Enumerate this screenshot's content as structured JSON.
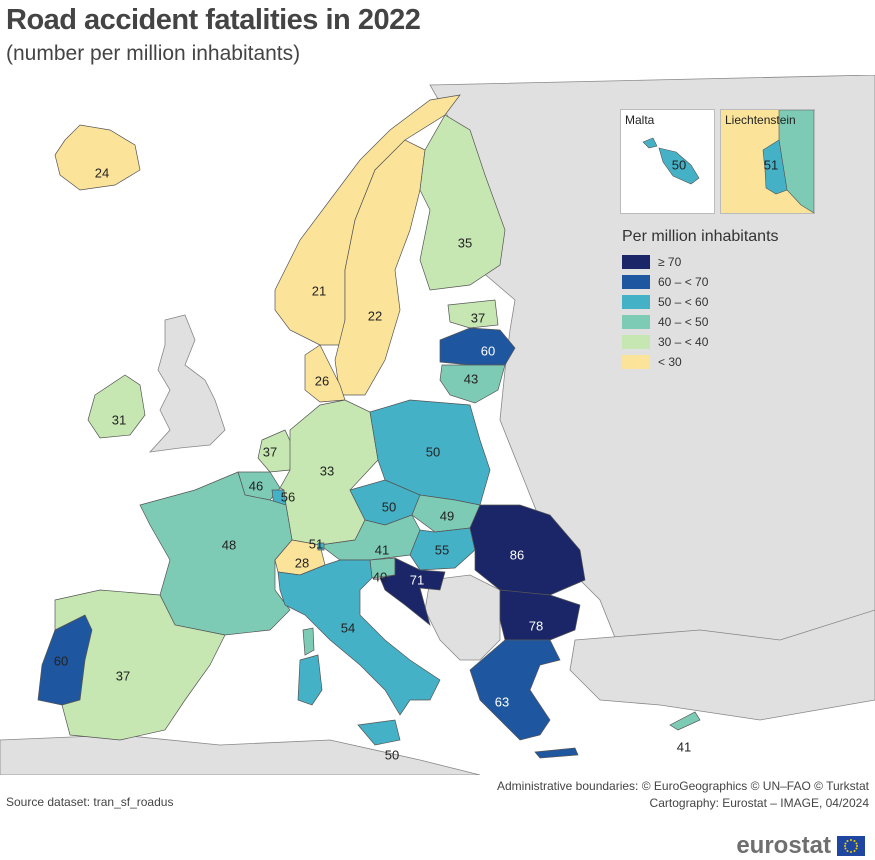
{
  "title": "Road accident fatalities in 2022",
  "subtitle": "(number per million inhabitants)",
  "legend": {
    "title": "Per million inhabitants",
    "classes": [
      {
        "label": "≥ 70",
        "color": "#1a2668"
      },
      {
        "label": "60 – < 70",
        "color": "#1f56a0"
      },
      {
        "label": "50 – < 60",
        "color": "#44b1c6"
      },
      {
        "label": "40 – < 50",
        "color": "#7ecbb5"
      },
      {
        "label": "30 – < 40",
        "color": "#c6e6b2"
      },
      {
        "label": "< 30",
        "color": "#fbe49a"
      }
    ]
  },
  "insets": {
    "malta": {
      "name": "Malta",
      "value": "50"
    },
    "liechtenstein": {
      "name": "Liechtenstein",
      "value": "51"
    }
  },
  "countries": [
    {
      "name": "Iceland",
      "value": "24"
    },
    {
      "name": "Norway",
      "value": "21"
    },
    {
      "name": "Sweden",
      "value": "22"
    },
    {
      "name": "Finland",
      "value": "35"
    },
    {
      "name": "Estonia",
      "value": "37"
    },
    {
      "name": "Latvia",
      "value": "60"
    },
    {
      "name": "Lithuania",
      "value": "43"
    },
    {
      "name": "Denmark",
      "value": "26"
    },
    {
      "name": "Ireland",
      "value": "31"
    },
    {
      "name": "Netherlands",
      "value": "37"
    },
    {
      "name": "Belgium",
      "value": "46"
    },
    {
      "name": "Luxembourg",
      "value": "56"
    },
    {
      "name": "Germany",
      "value": "33"
    },
    {
      "name": "Poland",
      "value": "50"
    },
    {
      "name": "Czechia",
      "value": "50"
    },
    {
      "name": "Slovakia",
      "value": "49"
    },
    {
      "name": "Austria",
      "value": "41"
    },
    {
      "name": "Hungary",
      "value": "55"
    },
    {
      "name": "Romania",
      "value": "86"
    },
    {
      "name": "France",
      "value": "48"
    },
    {
      "name": "Switzerland",
      "value": "28"
    },
    {
      "name": "Liechtenstein",
      "value": "51"
    },
    {
      "name": "Slovenia",
      "value": "40"
    },
    {
      "name": "Croatia",
      "value": "71"
    },
    {
      "name": "Bulgaria",
      "value": "78"
    },
    {
      "name": "Italy",
      "value": "54"
    },
    {
      "name": "Greece",
      "value": "63"
    },
    {
      "name": "Portugal",
      "value": "60"
    },
    {
      "name": "Spain",
      "value": "37"
    },
    {
      "name": "Malta",
      "value": "50"
    },
    {
      "name": "Cyprus",
      "value": "41"
    }
  ],
  "credits": {
    "line1": "Administrative boundaries: © EuroGeographics © UN–FAO © Turkstat",
    "line2": "Cartography: Eurostat – IMAGE, 04/2024"
  },
  "source": "Source dataset: tran_sf_roadus",
  "logo": "eurostat"
}
